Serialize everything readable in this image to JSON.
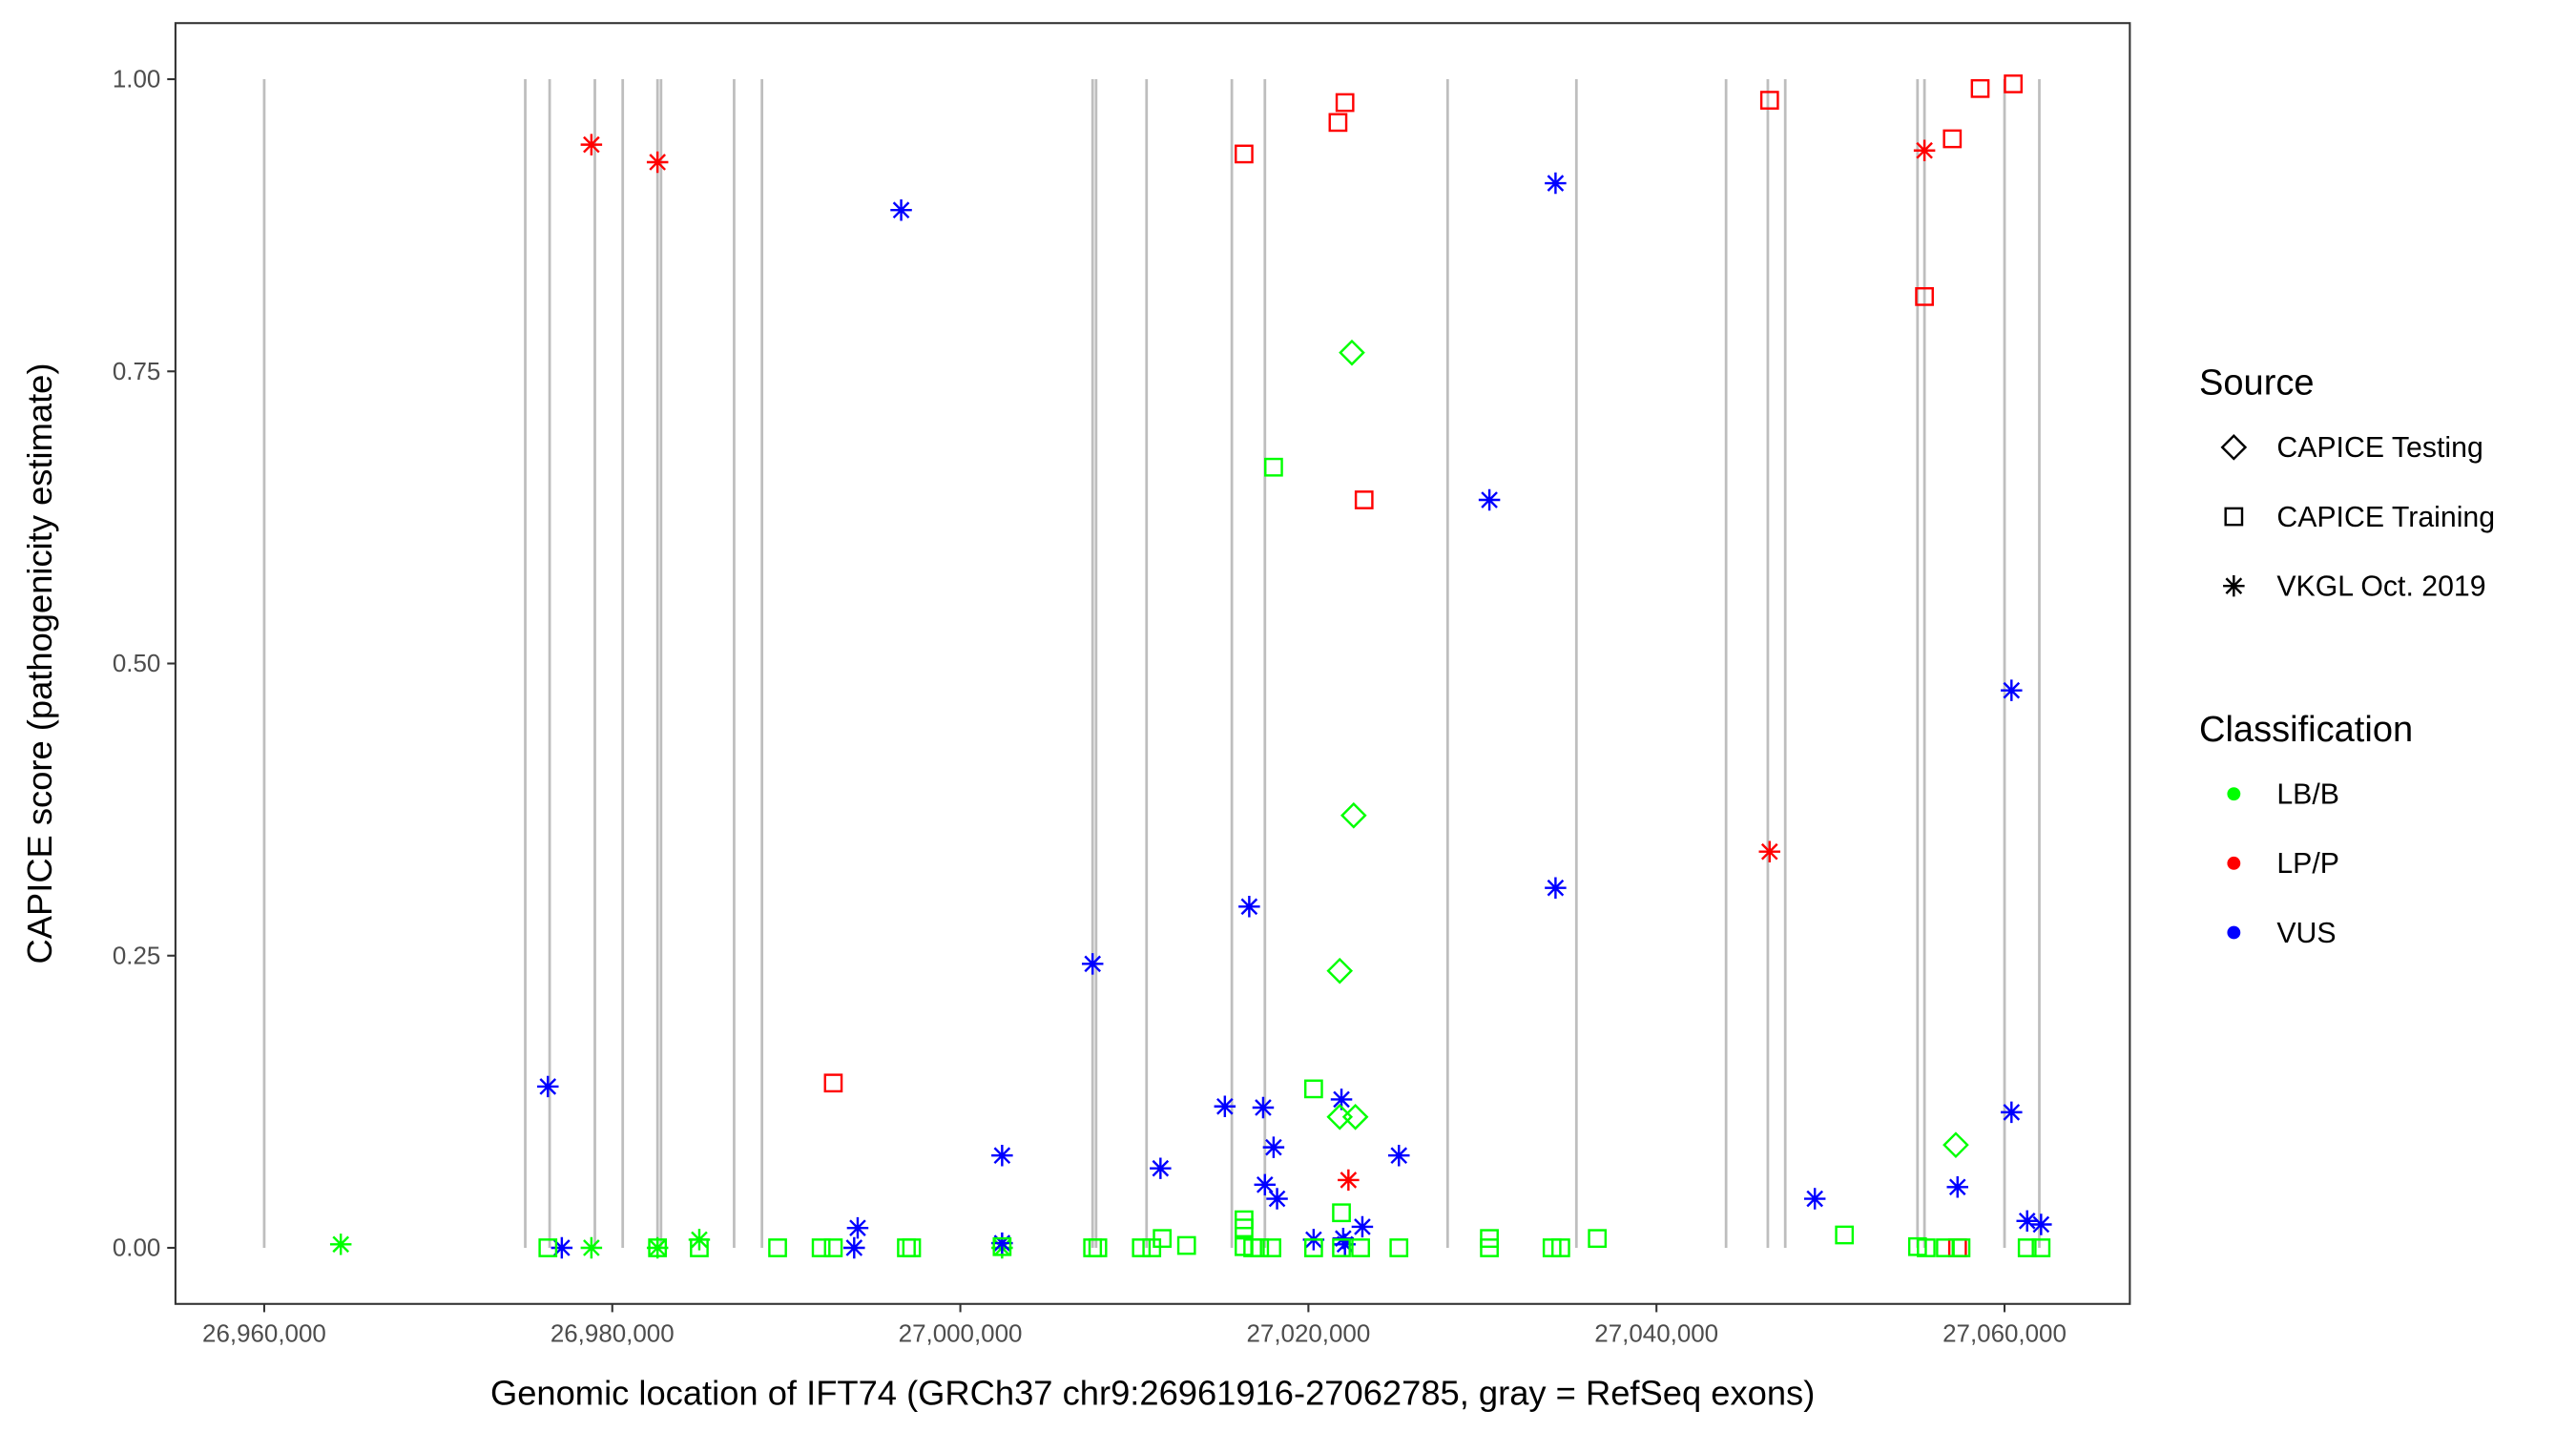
{
  "chart_data": {
    "type": "scatter",
    "title": "",
    "xlabel": "Genomic location of IFT74 (GRCh37 chr9:26961916-27062785, gray = RefSeq exons)",
    "ylabel": "CAPICE score (pathogenicity estimate)",
    "xlim": [
      26954900,
      27067200
    ],
    "ylim": [
      -0.048,
      1.048
    ],
    "grid": false,
    "x_ticks": [
      26960000,
      26980000,
      27000000,
      27020000,
      27040000,
      27060000
    ],
    "x_tick_labels": [
      "26,960,000",
      "26,980,000",
      "27,000,000",
      "27,020,000",
      "27,040,000",
      "27,060,000"
    ],
    "y_ticks": [
      0,
      0.25,
      0.5,
      0.75,
      1.0
    ],
    "y_tick_labels": [
      "0.00",
      "0.25",
      "0.50",
      "0.75",
      "1.00"
    ],
    "exon_color": "#BEBEBE",
    "exons": [
      26960000,
      26975000,
      26976400,
      26979000,
      26980600,
      26982600,
      26982800,
      26987000,
      26988600,
      27007600,
      27007800,
      27010700,
      27015600,
      27017500,
      27028000,
      27035400,
      27044000,
      27046400,
      27047400,
      27055000,
      27055400,
      27060000,
      27062000
    ],
    "legend": {
      "placement": "right",
      "source_title": "Source",
      "source_items": [
        {
          "label": "CAPICE Testing",
          "shape": "diamond"
        },
        {
          "label": "CAPICE Training",
          "shape": "square"
        },
        {
          "label": "VKGL Oct. 2019",
          "shape": "asterisk"
        }
      ],
      "class_title": "Classification",
      "class_items": [
        {
          "label": "LB/B",
          "color": "#00FF00"
        },
        {
          "label": "LP/P",
          "color": "#FF0000"
        },
        {
          "label": "VUS",
          "color": "#0000FF"
        }
      ]
    },
    "series": [
      {
        "source": "VKGL Oct. 2019",
        "class": "LB/B",
        "points": [
          [
            26964400,
            0.003
          ],
          [
            26978800,
            0
          ],
          [
            26982600,
            0
          ],
          [
            26985000,
            0.007
          ],
          [
            27002400,
            0
          ]
        ]
      },
      {
        "source": "VKGL Oct. 2019",
        "class": "LP/P",
        "points": [
          [
            26978800,
            0.944
          ],
          [
            26982600,
            0.929
          ],
          [
            27022300,
            0.058
          ],
          [
            27046500,
            0.339
          ],
          [
            27055400,
            0.939
          ]
        ]
      },
      {
        "source": "VKGL Oct. 2019",
        "class": "VUS",
        "points": [
          [
            26976300,
            0.138
          ],
          [
            26977100,
            0
          ],
          [
            26994100,
            0.017
          ],
          [
            26993900,
            0
          ],
          [
            26996600,
            0.888
          ],
          [
            27002400,
            0.079
          ],
          [
            27002400,
            0.004
          ],
          [
            27007600,
            0.243
          ],
          [
            27011500,
            0.068
          ],
          [
            27015200,
            0.121
          ],
          [
            27016600,
            0.292
          ],
          [
            27017400,
            0.12
          ],
          [
            27017500,
            0.054
          ],
          [
            27018000,
            0.086
          ],
          [
            27018200,
            0.042
          ],
          [
            27020300,
            0.007
          ],
          [
            27021900,
            0.127
          ],
          [
            27022000,
            0.008
          ],
          [
            27022100,
            0.003
          ],
          [
            27023100,
            0.018
          ],
          [
            27025200,
            0.079
          ],
          [
            27030400,
            0.64
          ],
          [
            27034200,
            0.911
          ],
          [
            27034200,
            0.308
          ],
          [
            27049100,
            0.042
          ],
          [
            27057300,
            0.052
          ],
          [
            27060400,
            0.477
          ],
          [
            27060400,
            0.116
          ],
          [
            27061300,
            0.023
          ],
          [
            27062100,
            0.02
          ]
        ]
      },
      {
        "source": "CAPICE Testing",
        "class": "LB/B",
        "points": [
          [
            27022500,
            0.766
          ],
          [
            27022600,
            0.37
          ],
          [
            27021800,
            0.237
          ],
          [
            27021800,
            0.112
          ],
          [
            27022700,
            0.112
          ],
          [
            27057200,
            0.088
          ]
        ]
      },
      {
        "source": "CAPICE Training",
        "class": "LP/P",
        "points": [
          [
            27016300,
            0.936
          ],
          [
            27021700,
            0.963
          ],
          [
            27022100,
            0.98
          ],
          [
            27023200,
            0.64
          ],
          [
            26992700,
            0.141
          ],
          [
            27046500,
            0.982
          ],
          [
            27055400,
            0.814
          ],
          [
            27057000,
            0.949
          ],
          [
            27058600,
            0.992
          ],
          [
            27060500,
            0.996
          ],
          [
            27057300,
            0
          ]
        ]
      },
      {
        "source": "CAPICE Training",
        "class": "LB/B",
        "points": [
          [
            27018000,
            0.668
          ],
          [
            27020300,
            0.136
          ],
          [
            27021900,
            0.03
          ],
          [
            27016300,
            0.024
          ],
          [
            27016300,
            0.017
          ],
          [
            26976300,
            0
          ],
          [
            26982600,
            0
          ],
          [
            26985000,
            0
          ],
          [
            26989500,
            0
          ],
          [
            26992000,
            0
          ],
          [
            26992700,
            0
          ],
          [
            26996900,
            0
          ],
          [
            26997200,
            0
          ],
          [
            27002400,
            0.001
          ],
          [
            27007600,
            0
          ],
          [
            27007900,
            0
          ],
          [
            27010400,
            0
          ],
          [
            27011000,
            0
          ],
          [
            27011600,
            0.008
          ],
          [
            27013000,
            0.002
          ],
          [
            27016300,
            0.001
          ],
          [
            27016800,
            0
          ],
          [
            27017200,
            0
          ],
          [
            27017900,
            0
          ],
          [
            27020300,
            0
          ],
          [
            27021900,
            0
          ],
          [
            27023000,
            0
          ],
          [
            27025200,
            0
          ],
          [
            27030400,
            0.008
          ],
          [
            27030400,
            0
          ],
          [
            27034000,
            0
          ],
          [
            27034500,
            0
          ],
          [
            27036600,
            0.008
          ],
          [
            27050800,
            0.011
          ],
          [
            27055000,
            0.001
          ],
          [
            27055500,
            0
          ],
          [
            27056600,
            0
          ],
          [
            27057500,
            0
          ],
          [
            27061300,
            0
          ],
          [
            27062100,
            0
          ]
        ]
      }
    ]
  }
}
